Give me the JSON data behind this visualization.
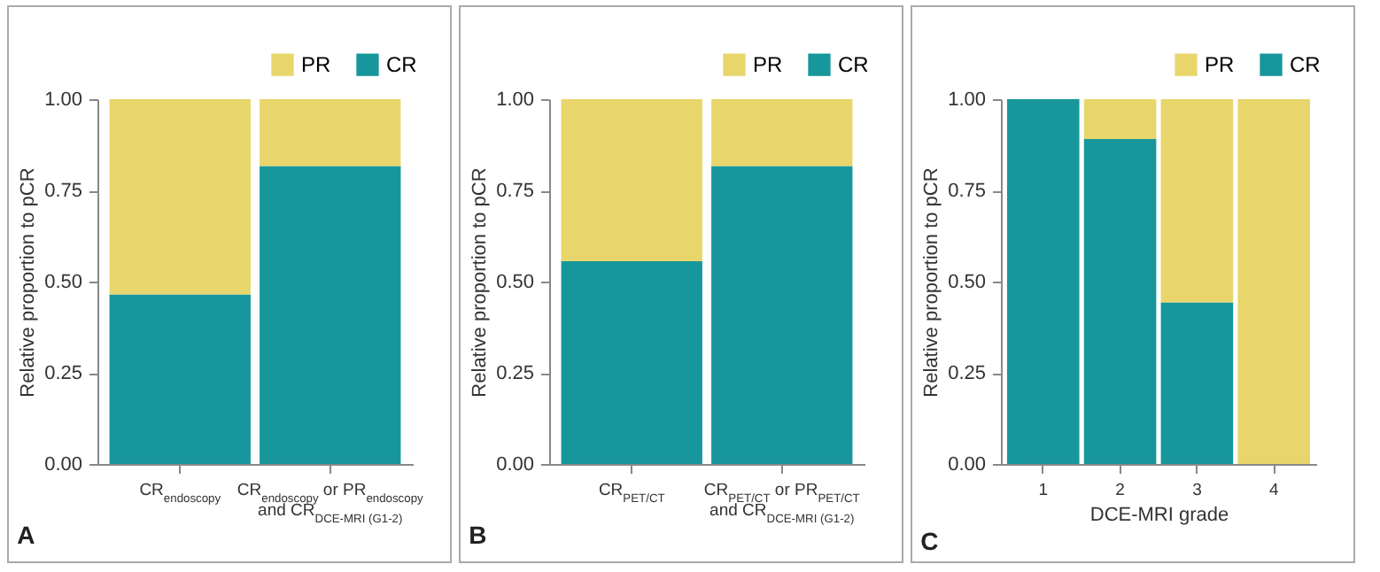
{
  "chart_data": [
    {
      "type": "bar",
      "stacked": true,
      "categories": [
        "CR$_{endoscopy}$",
        "CR$_{endoscopy}$ or PR$_{endoscopy}$ and CR$_{DCE-MRI (G1-2)}$"
      ],
      "series": [
        {
          "name": "CR",
          "color": "#17979b",
          "values": [
            0.465,
            0.817
          ]
        },
        {
          "name": "PR",
          "color": "#e8d66c",
          "values": [
            0.535,
            0.183
          ]
        }
      ],
      "ylim": [
        0,
        1
      ],
      "yticks": [
        {
          "value": 0,
          "label": "0.00"
        },
        {
          "value": 0.25,
          "label": "0.25"
        },
        {
          "value": 0.5,
          "label": "0.50"
        },
        {
          "value": 0.75,
          "label": "0.75"
        },
        {
          "value": 1,
          "label": "1.00"
        }
      ],
      "ylabel": "Relative proportion to pCR",
      "legend": "top right",
      "annotations": [
        "A"
      ]
    },
    {
      "type": "bar",
      "stacked": true,
      "categories": [
        "CR$_{PET/CT}$",
        "CR$_{PET/CT}$ or PR$_{PET/CT}$ and CR$_{DCE-MRI (G1-2)}$"
      ],
      "series": [
        {
          "name": "CR",
          "color": "#17979b",
          "values": [
            0.556,
            0.817
          ]
        },
        {
          "name": "PR",
          "color": "#e8d66c",
          "values": [
            0.444,
            0.183
          ]
        }
      ],
      "ylim": [
        0,
        1
      ],
      "yticks": [
        {
          "value": 0,
          "label": "0.00"
        },
        {
          "value": 0.25,
          "label": "0.25"
        },
        {
          "value": 0.5,
          "label": "0.50"
        },
        {
          "value": 0.75,
          "label": "0.75"
        },
        {
          "value": 1,
          "label": "1.00"
        }
      ],
      "ylabel": "Relative proportion to pCR",
      "legend": "top right",
      "annotations": [
        "B"
      ]
    },
    {
      "type": "bar",
      "stacked": true,
      "categories": [
        "1",
        "2",
        "3",
        "4"
      ],
      "series": [
        {
          "name": "CR",
          "color": "#17979b",
          "values": [
            1,
            0.891,
            0.443,
            0
          ]
        },
        {
          "name": "PR",
          "color": "#e8d66c",
          "values": [
            0,
            0.109,
            0.557,
            1
          ]
        }
      ],
      "ylim": [
        0,
        1
      ],
      "yticks": [
        {
          "value": 0,
          "label": "0.00"
        },
        {
          "value": 0.25,
          "label": "0.25"
        },
        {
          "value": 0.5,
          "label": "0.50"
        },
        {
          "value": 0.75,
          "label": "0.75"
        },
        {
          "value": 1,
          "label": "1.00"
        }
      ],
      "xlabel": "DCE-MRI grade",
      "ylabel": "Relative proportion to pCR",
      "legend": "top right",
      "annotations": [
        "C"
      ]
    }
  ]
}
